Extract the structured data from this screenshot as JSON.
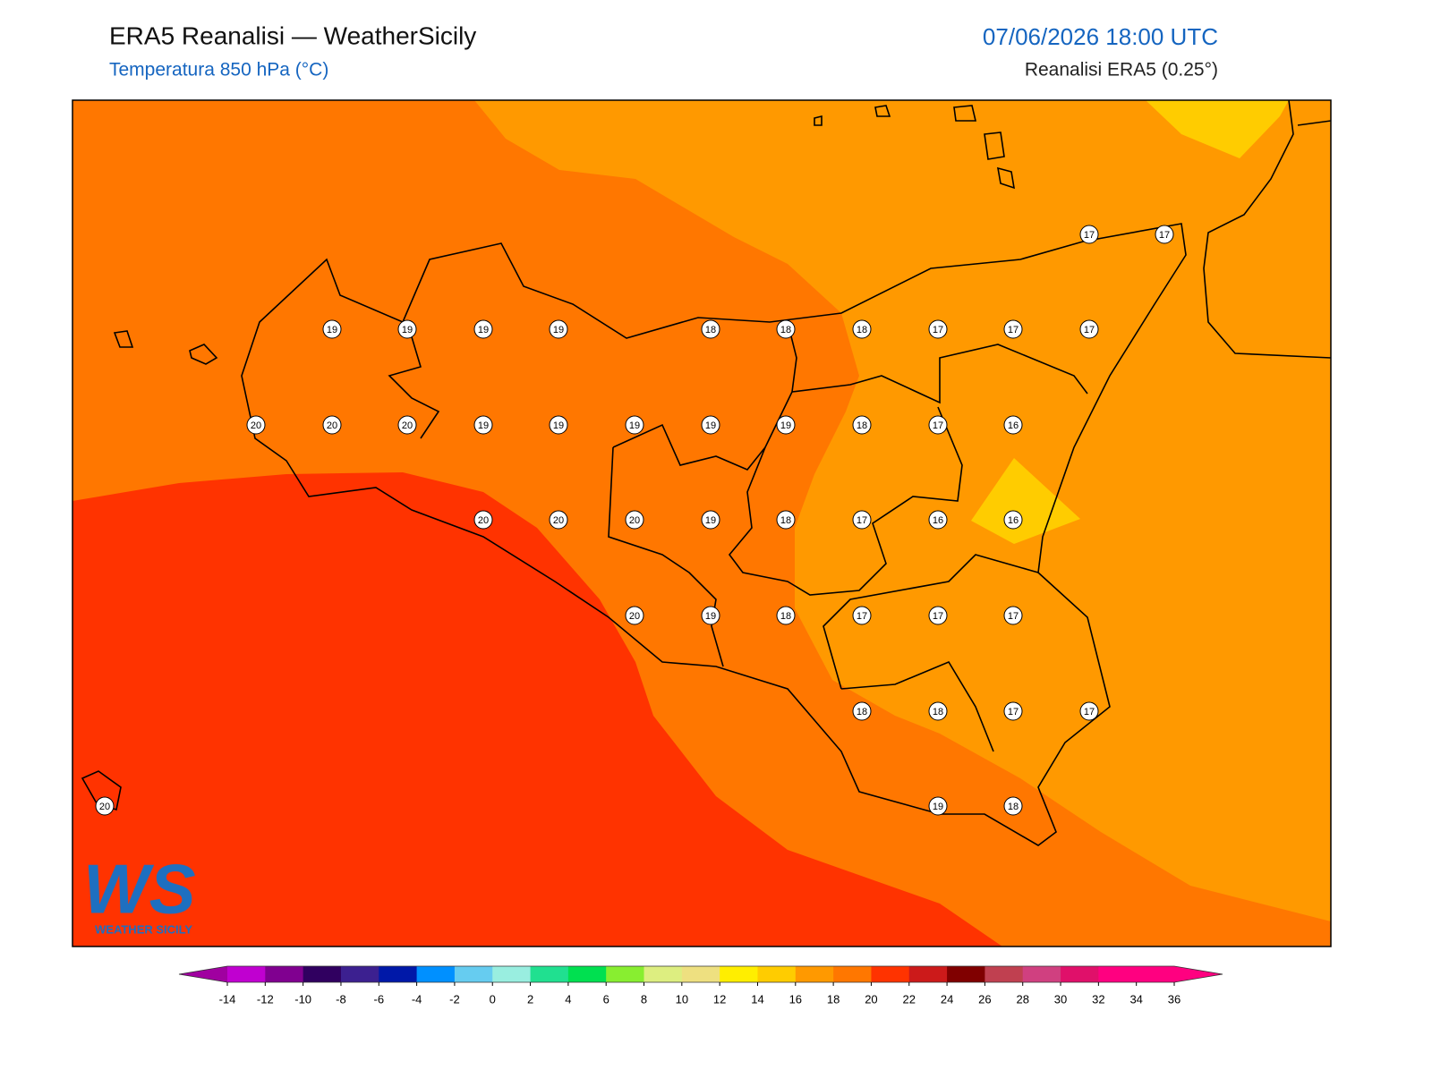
{
  "header": {
    "title": "ERA5 Reanalisi — WeatherSicily",
    "subtitle": "Temperatura 850 hPa (°C)",
    "datetime": "07/06/2026 18:00 UTC",
    "source": "Reanalisi ERA5 (0.25°)"
  },
  "logo": {
    "mark": "WS",
    "text": "WEATHER SICILY"
  },
  "map": {
    "point_values": [
      17,
      17,
      19,
      19,
      19,
      19,
      18,
      18,
      18,
      17,
      17,
      17,
      20,
      20,
      20,
      19,
      19,
      19,
      19,
      19,
      18,
      17,
      16,
      20,
      20,
      20,
      19,
      18,
      17,
      16,
      16,
      20,
      19,
      18,
      17,
      17,
      17,
      18,
      18,
      17,
      17,
      20,
      19,
      18
    ]
  },
  "colorbar": {
    "ticks": [
      -14,
      -12,
      -10,
      -8,
      -6,
      -4,
      -2,
      0,
      2,
      4,
      6,
      8,
      10,
      12,
      14,
      16,
      18,
      20,
      22,
      24,
      26,
      28,
      30,
      32,
      34,
      36
    ],
    "colors": [
      "#c000d0",
      "#800090",
      "#300060",
      "#3c2090",
      "#0018a8",
      "#0090ff",
      "#66ccf0",
      "#99eee0",
      "#20e090",
      "#00e050",
      "#88ee30",
      "#ddee80",
      "#eee080",
      "#ffee00",
      "#ffcc00",
      "#ff9900",
      "#ff7700",
      "#ff3300",
      "#cc1a1a",
      "#800000",
      "#c04050",
      "#d04080",
      "#e0106a",
      "#ff0080",
      "#ff0080"
    ],
    "under_color": "#a000a0",
    "over_color": "#ff0080"
  }
}
